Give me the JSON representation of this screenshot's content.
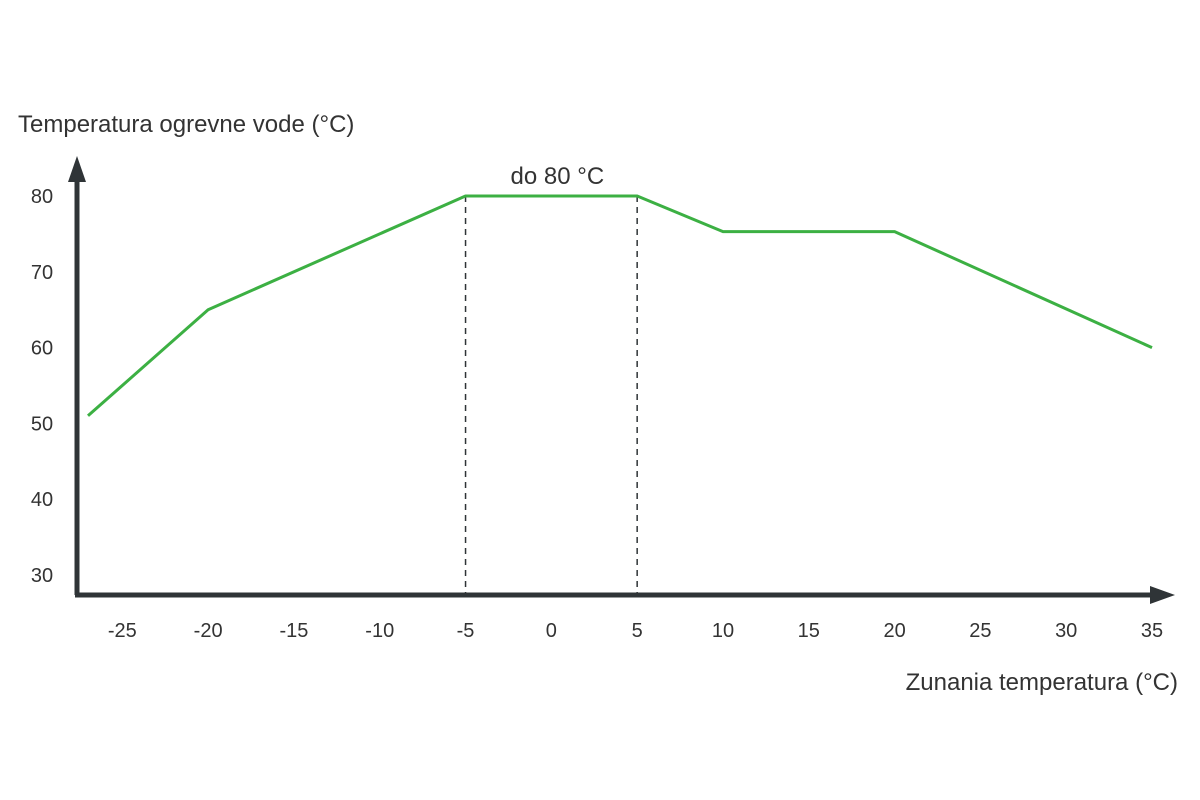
{
  "chart_data": {
    "type": "line",
    "ylabel": "Temperatura ogrevne vode (°C)",
    "xlabel": "Zunania temperatura (°C)",
    "xlim": [
      -27,
      35
    ],
    "ylim": [
      27,
      80
    ],
    "x_ticks": [
      "-25",
      "-20",
      "-15",
      "-10",
      "-5",
      "0",
      "5",
      "10",
      "15",
      "20",
      "25",
      "30",
      "35"
    ],
    "y_ticks": [
      "30",
      "40",
      "50",
      "60",
      "70",
      "80"
    ],
    "grid": false,
    "series": [
      {
        "color": "#3cb043",
        "points": [
          {
            "x": -27,
            "y": 51
          },
          {
            "x": -20,
            "y": 65
          },
          {
            "x": -5,
            "y": 80
          },
          {
            "x": 5,
            "y": 80
          },
          {
            "x": 10,
            "y": 75.3
          },
          {
            "x": 20,
            "y": 75.3
          },
          {
            "x": 35,
            "y": 60
          }
        ]
      }
    ],
    "reference_lines": [
      {
        "x": -5,
        "style": "dashed"
      },
      {
        "x": 5,
        "style": "dashed"
      }
    ],
    "annotation": {
      "text": "do 80 °C",
      "x": 0,
      "y": 80
    }
  },
  "colors": {
    "axis": "#2f3437",
    "line": "#3cb043",
    "text": "#333333"
  }
}
